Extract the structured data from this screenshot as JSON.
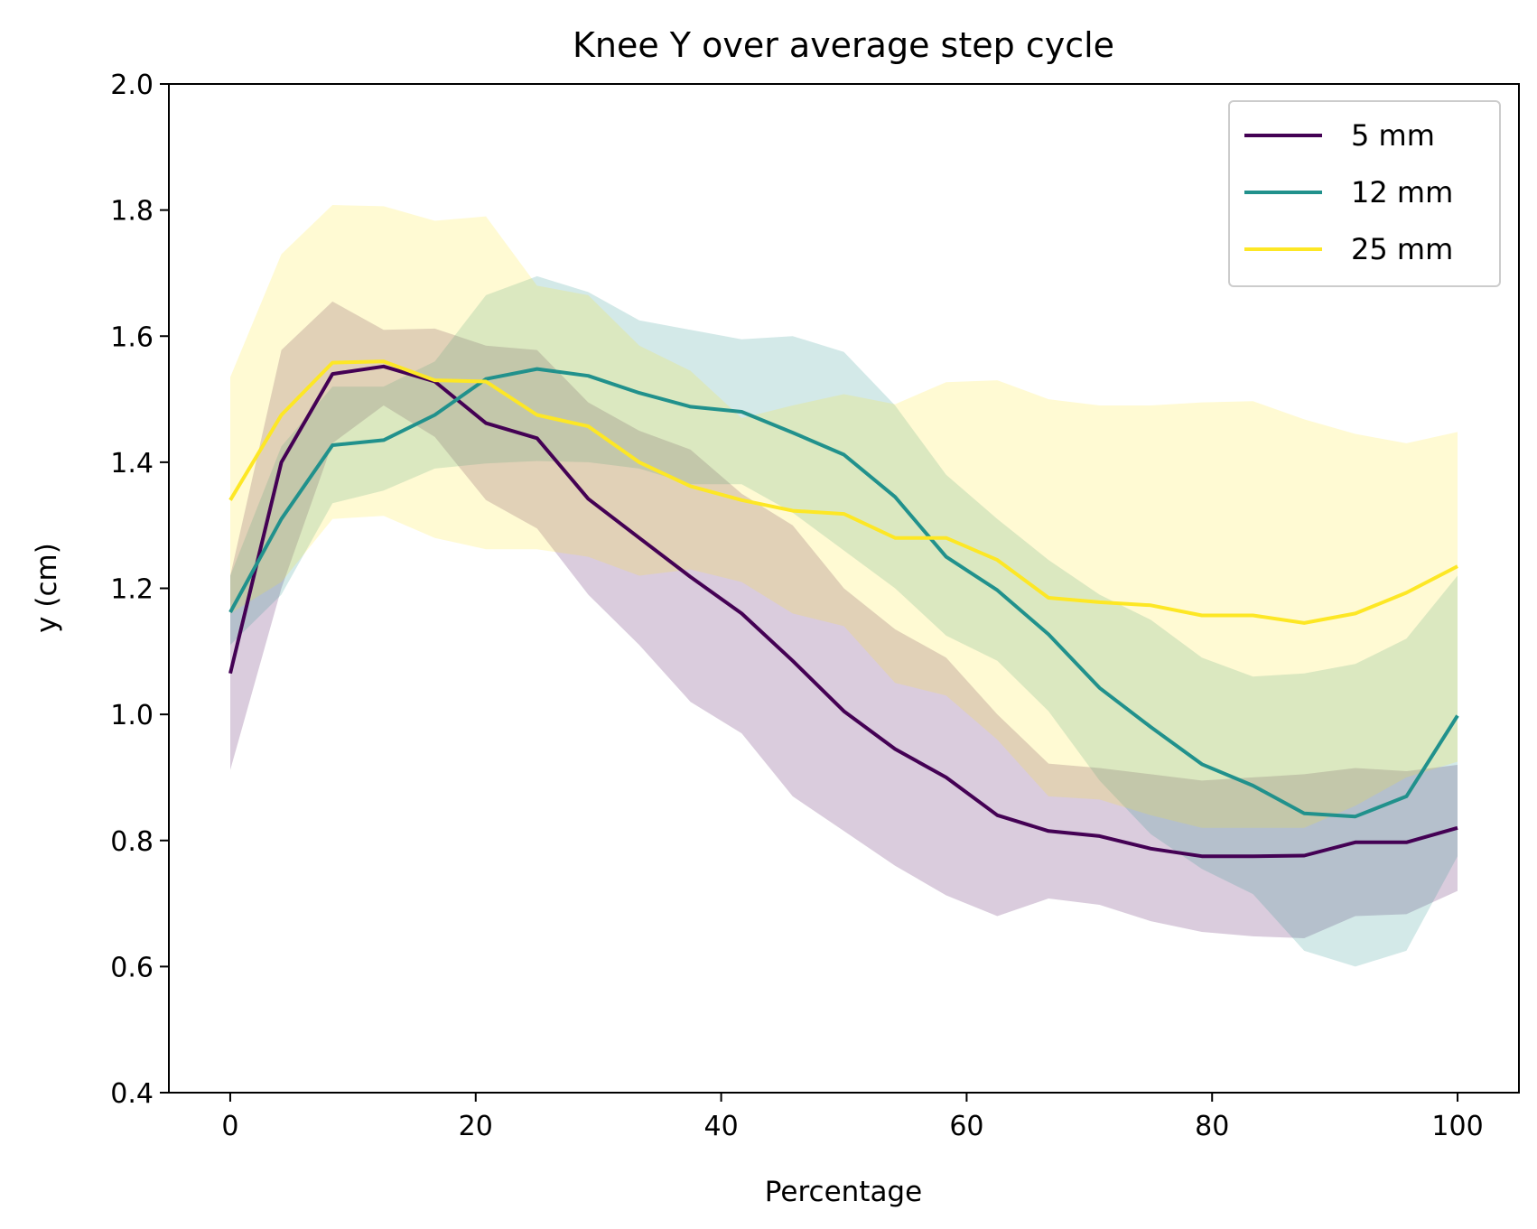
{
  "chart_data": {
    "type": "line",
    "title": "Knee Y over average step cycle",
    "xlabel": "Percentage",
    "ylabel": "y (cm)",
    "xlim": [
      -5,
      105
    ],
    "ylim": [
      0.4,
      2.0
    ],
    "x_ticks": [
      0,
      20,
      40,
      60,
      80,
      100
    ],
    "x_tick_labels": [
      "0",
      "20",
      "40",
      "60",
      "80",
      "100"
    ],
    "y_ticks": [
      0.4,
      0.6,
      0.8,
      1.0,
      1.2,
      1.4,
      1.6,
      1.8,
      2.0
    ],
    "y_tick_labels": [
      "0.4",
      "0.6",
      "0.8",
      "1.0",
      "1.2",
      "1.4",
      "1.6",
      "1.8",
      "2.0"
    ],
    "grid": false,
    "legend_position": "top-right",
    "band_opacity": 0.2,
    "x": [
      0,
      4.17,
      8.33,
      12.5,
      16.67,
      20.83,
      25,
      29.17,
      33.33,
      37.5,
      41.67,
      45.83,
      50,
      54.17,
      58.33,
      62.5,
      66.67,
      70.83,
      75,
      79.17,
      83.33,
      87.5,
      91.67,
      95.83,
      100
    ],
    "series": [
      {
        "name": "5 mm",
        "color": "#440154",
        "values": [
          1.065,
          1.4,
          1.54,
          1.552,
          1.528,
          1.462,
          1.438,
          1.342,
          1.28,
          1.218,
          1.16,
          1.085,
          1.005,
          0.945,
          0.9,
          0.84,
          0.815,
          0.807,
          0.787,
          0.775,
          0.775,
          0.776,
          0.797,
          0.797,
          0.82
        ],
        "lower": [
          0.912,
          1.2,
          1.43,
          1.49,
          1.44,
          1.34,
          1.295,
          1.19,
          1.11,
          1.02,
          0.97,
          0.87,
          0.815,
          0.76,
          0.713,
          0.68,
          0.708,
          0.698,
          0.672,
          0.655,
          0.648,
          0.645,
          0.68,
          0.683,
          0.72
        ],
        "upper": [
          1.22,
          1.578,
          1.655,
          1.61,
          1.612,
          1.585,
          1.578,
          1.495,
          1.45,
          1.42,
          1.35,
          1.3,
          1.2,
          1.135,
          1.09,
          1.0,
          0.922,
          0.915,
          0.905,
          0.895,
          0.9,
          0.905,
          0.915,
          0.91,
          0.92
        ]
      },
      {
        "name": "12 mm",
        "color": "#21918c",
        "values": [
          1.162,
          1.31,
          1.427,
          1.435,
          1.475,
          1.532,
          1.548,
          1.537,
          1.51,
          1.488,
          1.48,
          1.447,
          1.412,
          1.345,
          1.25,
          1.197,
          1.127,
          1.042,
          0.98,
          0.921,
          0.887,
          0.843,
          0.838,
          0.87,
          0.998
        ],
        "lower": [
          1.11,
          1.19,
          1.335,
          1.355,
          1.39,
          1.398,
          1.402,
          1.4,
          1.39,
          1.365,
          1.365,
          1.32,
          1.26,
          1.2,
          1.125,
          1.085,
          1.005,
          0.895,
          0.81,
          0.755,
          0.715,
          0.625,
          0.6,
          0.625,
          0.775
        ],
        "upper": [
          1.22,
          1.425,
          1.52,
          1.52,
          1.56,
          1.665,
          1.695,
          1.67,
          1.625,
          1.61,
          1.595,
          1.6,
          1.575,
          1.49,
          1.38,
          1.31,
          1.245,
          1.19,
          1.15,
          1.09,
          1.06,
          1.065,
          1.08,
          1.12,
          1.22
        ]
      },
      {
        "name": "25 mm",
        "color": "#fde725",
        "values": [
          1.34,
          1.475,
          1.558,
          1.56,
          1.53,
          1.528,
          1.475,
          1.457,
          1.4,
          1.362,
          1.34,
          1.323,
          1.318,
          1.28,
          1.28,
          1.245,
          1.185,
          1.178,
          1.173,
          1.157,
          1.157,
          1.145,
          1.16,
          1.193,
          1.235
        ],
        "lower": [
          1.16,
          1.21,
          1.31,
          1.315,
          1.28,
          1.262,
          1.262,
          1.25,
          1.22,
          1.23,
          1.21,
          1.16,
          1.14,
          1.05,
          1.03,
          0.96,
          0.87,
          0.865,
          0.84,
          0.82,
          0.82,
          0.82,
          0.855,
          0.9,
          0.925
        ],
        "upper": [
          1.535,
          1.73,
          1.808,
          1.806,
          1.783,
          1.79,
          1.68,
          1.665,
          1.585,
          1.545,
          1.47,
          1.49,
          1.508,
          1.492,
          1.527,
          1.53,
          1.5,
          1.49,
          1.49,
          1.495,
          1.497,
          1.468,
          1.445,
          1.43,
          1.448
        ]
      }
    ]
  }
}
